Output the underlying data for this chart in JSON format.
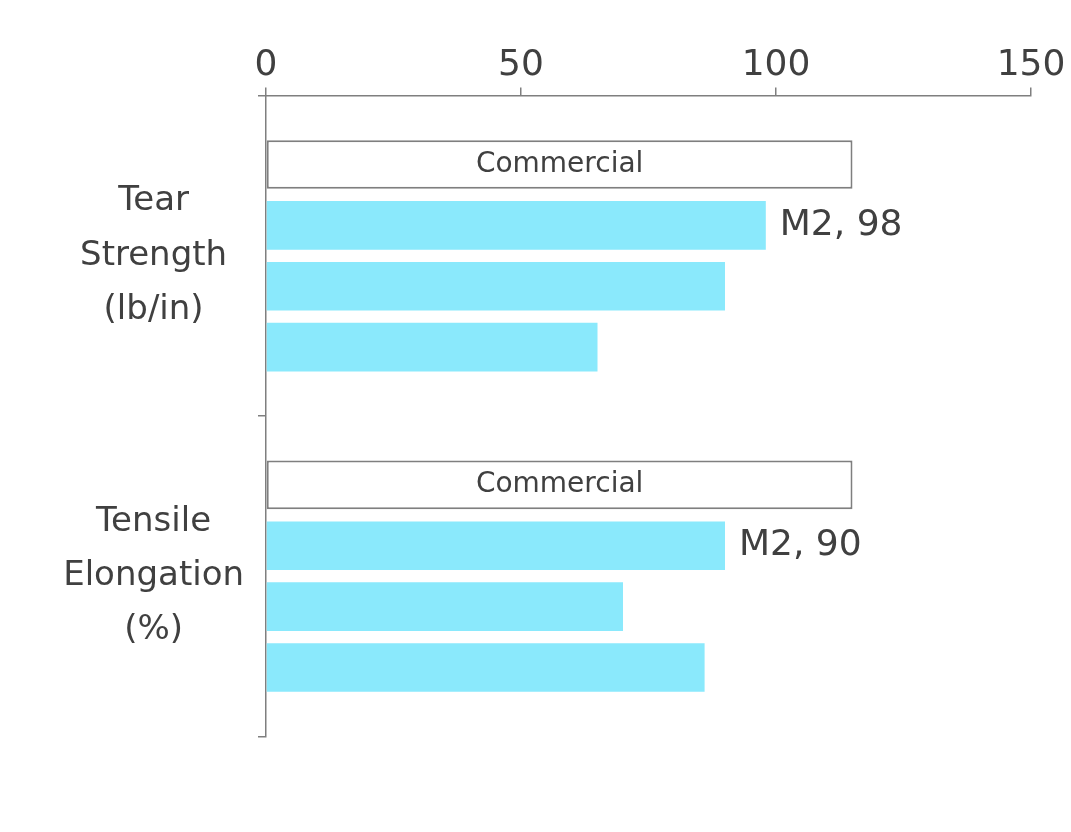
{
  "chart_data": {
    "type": "bar",
    "orientation": "horizontal",
    "categories": [
      "Tear Strength (lb/in)",
      "Tensile Elongation (%)"
    ],
    "series": [
      {
        "name": "Commercial",
        "color": "#ffffff",
        "values": [
          115,
          115
        ]
      },
      {
        "color": "#8ae9fc",
        "values": [
          98,
          90
        ],
        "value_labels": [
          "M2, 98",
          "M2, 90"
        ]
      },
      {
        "color": "#8ae9fc",
        "values": [
          90,
          70
        ]
      },
      {
        "color": "#8ae9fc",
        "values": [
          65,
          86
        ]
      }
    ],
    "xlim": [
      0,
      150
    ],
    "xticks": [
      0,
      50,
      100,
      150
    ],
    "grid": false,
    "legend": false
  }
}
